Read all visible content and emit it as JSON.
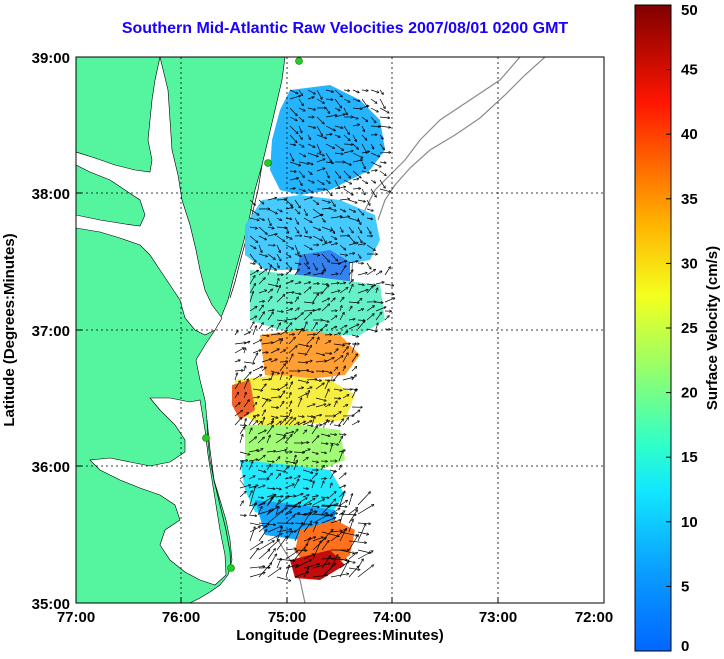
{
  "title": "Southern Mid-Atlantic Raw Velocities 2007/08/01 0200 GMT",
  "x_axis": {
    "label": "Longitude (Degrees:Minutes)",
    "ticks": [
      "77:00",
      "76:00",
      "75:00",
      "74:00",
      "73:00",
      "72:00"
    ]
  },
  "y_axis": {
    "label": "Latitude (Degrees:Minutes)",
    "ticks": [
      "39:00",
      "38:00",
      "37:00",
      "36:00",
      "35:00"
    ]
  },
  "colorbar": {
    "label": "Surface Velocity (cm/s)",
    "ticks": [
      "50",
      "45",
      "40",
      "35",
      "30",
      "25",
      "20",
      "15",
      "10",
      "5",
      "0"
    ],
    "range": [
      0,
      50
    ]
  },
  "colors": {
    "title": "#1a00ff",
    "land": "#55f5a0",
    "grid": "#000000"
  }
}
